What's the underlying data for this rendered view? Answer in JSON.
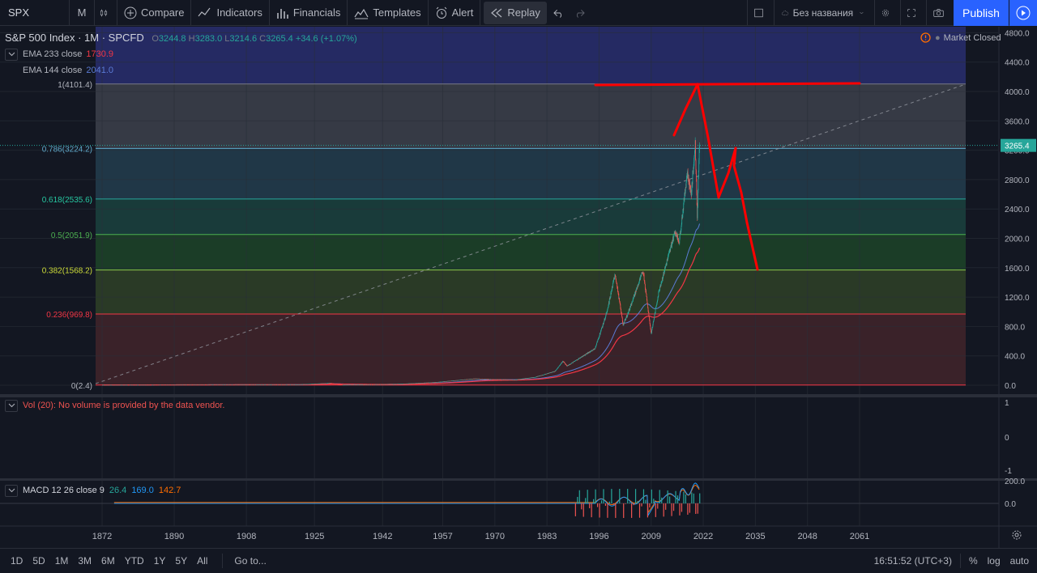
{
  "toolbar": {
    "symbol": "SPX",
    "interval": "M",
    "compare": "Compare",
    "indicators": "Indicators",
    "financials": "Financials",
    "templates": "Templates",
    "alert": "Alert",
    "replay": "Replay",
    "layout_name": "Без названия",
    "publish": "Publish"
  },
  "legend": {
    "title": "S&P 500 Index · 1M · SPCFD",
    "o_label": "O",
    "o": "3244.8",
    "h_label": "H",
    "h": "3283.0",
    "l_label": "L",
    "l": "3214.6",
    "c_label": "C",
    "c": "3265.4",
    "change": "+34.6 (+1.07%)",
    "ema233_label": "EMA 233 close",
    "ema233_value": "1730.9",
    "ema144_label": "EMA 144 close",
    "ema144_value": "2041.0",
    "market_status": "Market Closed"
  },
  "fib_levels": [
    {
      "label": "1(4101.4)",
      "value": 4101.4,
      "line": "#787b86",
      "fill": "#363a45",
      "text": "#b2b5be"
    },
    {
      "label": "0.786(3224.2)",
      "value": 3224.2,
      "line": "#5fa8c9",
      "fill": "#203747",
      "text": "#5fa8c9"
    },
    {
      "label": "0.618(2535.6)",
      "value": 2535.6,
      "line": "#26a69a",
      "fill": "#193b3a",
      "text": "#26c6a0"
    },
    {
      "label": "0.5(2051.9)",
      "value": 2051.9,
      "line": "#4caf50",
      "fill": "#1b3d27",
      "text": "#4caf50"
    },
    {
      "label": "0.382(1568.2)",
      "value": 1568.2,
      "line": "#8bc34a",
      "fill": "#2a3a26",
      "text": "#cddc39"
    },
    {
      "label": "0.236(969.8)",
      "value": 969.8,
      "line": "#f23645",
      "fill": "#3a2229",
      "text": "#f23645"
    },
    {
      "label": "0(2.4)",
      "value": 2.4,
      "line": "#f23645",
      "fill": null,
      "text": "#b2b5be"
    }
  ],
  "top_band_fill": "#252a63",
  "price_axis": {
    "ticks": [
      "4800.0",
      "4400.0",
      "4000.0",
      "3600.0",
      "3200.0",
      "2800.0",
      "2400.0",
      "2000.0",
      "1600.0",
      "1200.0",
      "800.0",
      "400.0",
      "0.0"
    ],
    "tick_values": [
      4800,
      4400,
      4000,
      3600,
      3200,
      2800,
      2400,
      2000,
      1600,
      1200,
      800,
      400,
      0
    ],
    "last_price": "3265.4",
    "last_value": 3265.4
  },
  "time_axis": {
    "ticks": [
      "1872",
      "1890",
      "1908",
      "1925",
      "1942",
      "1957",
      "1970",
      "1983",
      "1996",
      "2009",
      "2022",
      "2035",
      "2048",
      "2061"
    ],
    "tick_years": [
      1872,
      1890,
      1908,
      1925,
      1942,
      1957,
      1970,
      1983,
      1996,
      2009,
      2022,
      2035,
      2048,
      2061
    ]
  },
  "volume": {
    "label": "Vol (20): No volume is provided by the data vendor.",
    "ticks": [
      "1",
      "0",
      "-1"
    ]
  },
  "macd": {
    "label": "MACD 12 26 close 9",
    "v1": "26.4",
    "v2": "169.0",
    "v3": "142.7",
    "ticks": [
      "200.0",
      "0.0"
    ]
  },
  "colors": {
    "accent": "#2962ff",
    "up": "#26a69a",
    "down": "#ef5350",
    "ema233": "#f23645",
    "ema144": "#5b7bd5",
    "annotation": "#ff0000"
  },
  "bottom": {
    "ranges": [
      "1D",
      "5D",
      "1M",
      "3M",
      "6M",
      "YTD",
      "1Y",
      "5Y",
      "All"
    ],
    "goto": "Go to...",
    "time": "16:51:52 (UTC+3)",
    "percent": "%",
    "log": "log",
    "auto": "auto"
  }
}
